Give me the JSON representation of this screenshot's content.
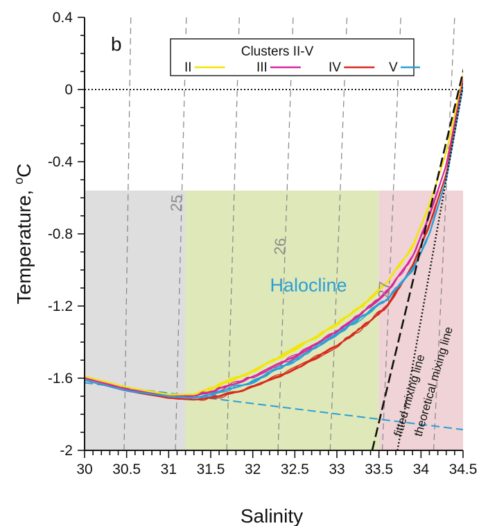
{
  "chart_data": {
    "type": "line",
    "panel_label": "b",
    "xlabel": "Salinity",
    "ylabel_main": "Temperature, ",
    "ylabel_sup": "o",
    "ylabel_unit": "C",
    "xlim": [
      30,
      34.5
    ],
    "ylim": [
      -2,
      0.4
    ],
    "x_ticks": [
      "30",
      "30.5",
      "31",
      "31.5",
      "32",
      "32.5",
      "33",
      "33.5",
      "34",
      "34.5"
    ],
    "y_ticks": [
      "-2",
      "-1.6",
      "-1.2",
      "-0.8",
      "-0.4",
      "0",
      "0.4"
    ],
    "zero_line": 0,
    "shaded_regions": [
      {
        "x_from": 30.0,
        "x_to": 31.2,
        "y_top": -0.56,
        "color": "#dedede"
      },
      {
        "x_from": 31.2,
        "x_to": 33.5,
        "y_top": -0.56,
        "color": "#dfe8b8"
      },
      {
        "x_from": 33.5,
        "x_to": 34.5,
        "y_top": -0.56,
        "color": "#efd3d6"
      }
    ],
    "region_label": {
      "text": "Halocline",
      "color": "#2a9fd6"
    },
    "isopycnals": [
      {
        "label": "",
        "x_bottom": 30.47,
        "x_top": 30.55
      },
      {
        "label": "25",
        "x_bottom": 31.08,
        "x_top": 31.21
      },
      {
        "label": "",
        "x_bottom": 31.69,
        "x_top": 31.84
      },
      {
        "label": "26",
        "x_bottom": 32.3,
        "x_top": 32.48
      },
      {
        "label": "",
        "x_bottom": 32.92,
        "x_top": 33.12
      },
      {
        "label": "27",
        "x_bottom": 33.54,
        "x_top": 33.76
      },
      {
        "label": "",
        "x_bottom": 34.15,
        "x_top": 34.4
      }
    ],
    "freezing_line": {
      "x": [
        30.0,
        34.5
      ],
      "y": [
        -1.625,
        -1.885
      ],
      "color": "#2a9fd6"
    },
    "mixing_lines": [
      {
        "name": "fitted mixing line",
        "x": [
          33.42,
          34.62
        ],
        "y": [
          -2.0,
          0.33
        ],
        "style": "dashed"
      },
      {
        "name": "theoretical mixing line",
        "x": [
          33.72,
          34.62
        ],
        "y": [
          -2.0,
          0.33
        ],
        "style": "dotted"
      }
    ],
    "legend": {
      "title": "Clusters II-V",
      "position": "top-center",
      "entries": [
        {
          "label": "II",
          "color": "#f2e600"
        },
        {
          "label": "III",
          "color": "#d6289a"
        },
        {
          "label": "IV",
          "color": "#d62a1e"
        },
        {
          "label": "V",
          "color": "#2a9fd6"
        }
      ]
    },
    "series": [
      {
        "label": "II",
        "color": "#f2e600",
        "x": [
          30.0,
          30.5,
          31.0,
          31.3,
          31.6,
          32.0,
          32.5,
          33.0,
          33.3,
          33.6,
          33.9,
          34.1,
          34.3,
          34.62
        ],
        "y": [
          -1.59,
          -1.65,
          -1.69,
          -1.69,
          -1.64,
          -1.56,
          -1.44,
          -1.3,
          -1.2,
          -1.07,
          -0.87,
          -0.64,
          -0.35,
          0.33
        ]
      },
      {
        "label": "III",
        "color": "#d6289a",
        "x": [
          30.0,
          30.5,
          31.0,
          31.3,
          31.6,
          32.0,
          32.5,
          33.0,
          33.3,
          33.6,
          33.9,
          34.1,
          34.3,
          34.62
        ],
        "y": [
          -1.6,
          -1.66,
          -1.7,
          -1.7,
          -1.66,
          -1.59,
          -1.48,
          -1.34,
          -1.24,
          -1.12,
          -0.93,
          -0.7,
          -0.42,
          0.33
        ]
      },
      {
        "label": "IV",
        "color": "#d62a1e",
        "x": [
          30.0,
          30.5,
          31.0,
          31.3,
          31.6,
          32.0,
          32.5,
          33.0,
          33.3,
          33.6,
          33.9,
          34.1,
          34.3,
          34.62
        ],
        "y": [
          -1.61,
          -1.67,
          -1.71,
          -1.72,
          -1.7,
          -1.65,
          -1.55,
          -1.42,
          -1.32,
          -1.2,
          -0.98,
          -0.75,
          -0.47,
          0.33
        ]
      },
      {
        "label": "V",
        "color": "#2a9fd6",
        "x": [
          30.0,
          30.5,
          31.0,
          31.3,
          31.6,
          32.0,
          32.5,
          33.0,
          33.3,
          33.6,
          33.9,
          34.1,
          34.3,
          34.62
        ],
        "y": [
          -1.61,
          -1.67,
          -1.7,
          -1.71,
          -1.68,
          -1.62,
          -1.5,
          -1.36,
          -1.26,
          -1.16,
          -1.0,
          -0.8,
          -0.5,
          0.33
        ]
      }
    ]
  }
}
